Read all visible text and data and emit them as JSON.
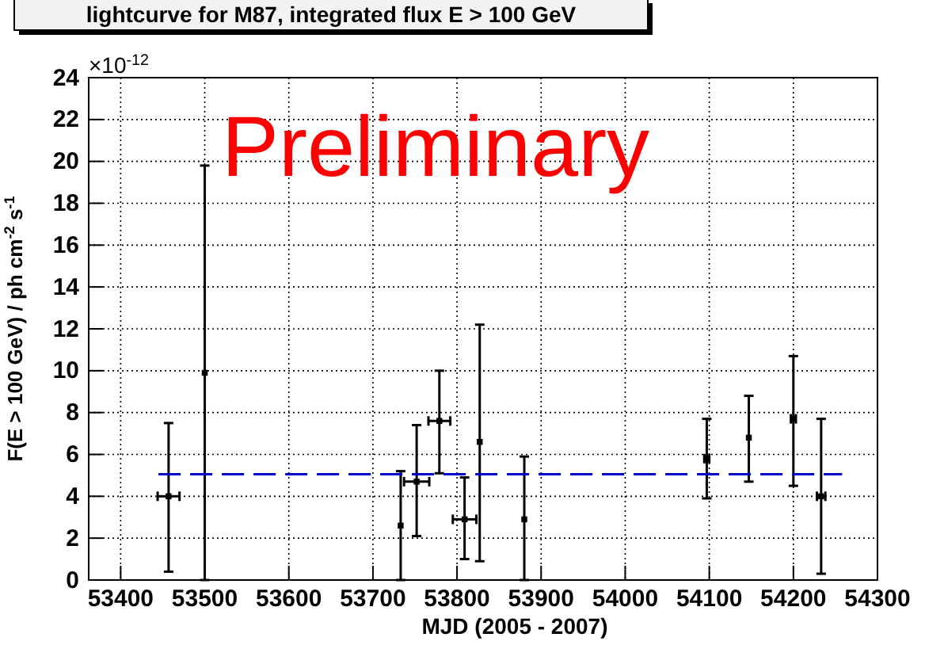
{
  "chart_data": {
    "type": "scatter",
    "title": "lightcurve for M87, integrated flux E > 100 GeV",
    "xlabel": "MJD (2005 - 2007)",
    "ylabel": "F(E > 100 GeV) / ph cm$^{-2}$ s$^{-1}$",
    "annotations": [
      "×10$^{-12}$",
      "Preliminary"
    ],
    "xlim": [
      53362,
      54300
    ],
    "xticks": [
      53400,
      53500,
      53600,
      53700,
      53800,
      53900,
      54000,
      54100,
      54200,
      54300
    ],
    "ylim": [
      0,
      24
    ],
    "yticks": [
      0,
      2,
      4,
      6,
      8,
      10,
      12,
      14,
      16,
      18,
      20,
      22,
      24
    ],
    "grid": true,
    "series": [
      {
        "marker": "square",
        "color": "#000000",
        "x": [
          53457,
          53500,
          53733,
          53752,
          53779,
          53809,
          53827,
          53880,
          54097,
          54147,
          54200,
          54233
        ],
        "values": [
          4.0,
          9.9,
          2.6,
          4.7,
          7.6,
          2.9,
          6.6,
          2.9,
          5.8,
          6.8,
          7.7,
          4.0
        ],
        "errors": [
          [
            0.4,
            7.5
          ],
          [
            0,
            19.8
          ],
          [
            0,
            5.2
          ],
          [
            2.1,
            7.4
          ],
          [
            5.1,
            10.0
          ],
          [
            1.0,
            4.9
          ],
          [
            0.9,
            12.2
          ],
          [
            0,
            5.9
          ],
          [
            3.9,
            7.7
          ],
          [
            4.7,
            8.8
          ],
          [
            4.5,
            10.7
          ],
          [
            0.3,
            7.7
          ]
        ],
        "xerrors": [
          13,
          null,
          null,
          15,
          13,
          14,
          null,
          null,
          3,
          null,
          3,
          5
        ]
      },
      {
        "type": "line",
        "color": "#0000cc",
        "line_style": "dashed",
        "x": [
          53445,
          54258
        ],
        "values": [
          5.05,
          5.05
        ]
      }
    ]
  }
}
